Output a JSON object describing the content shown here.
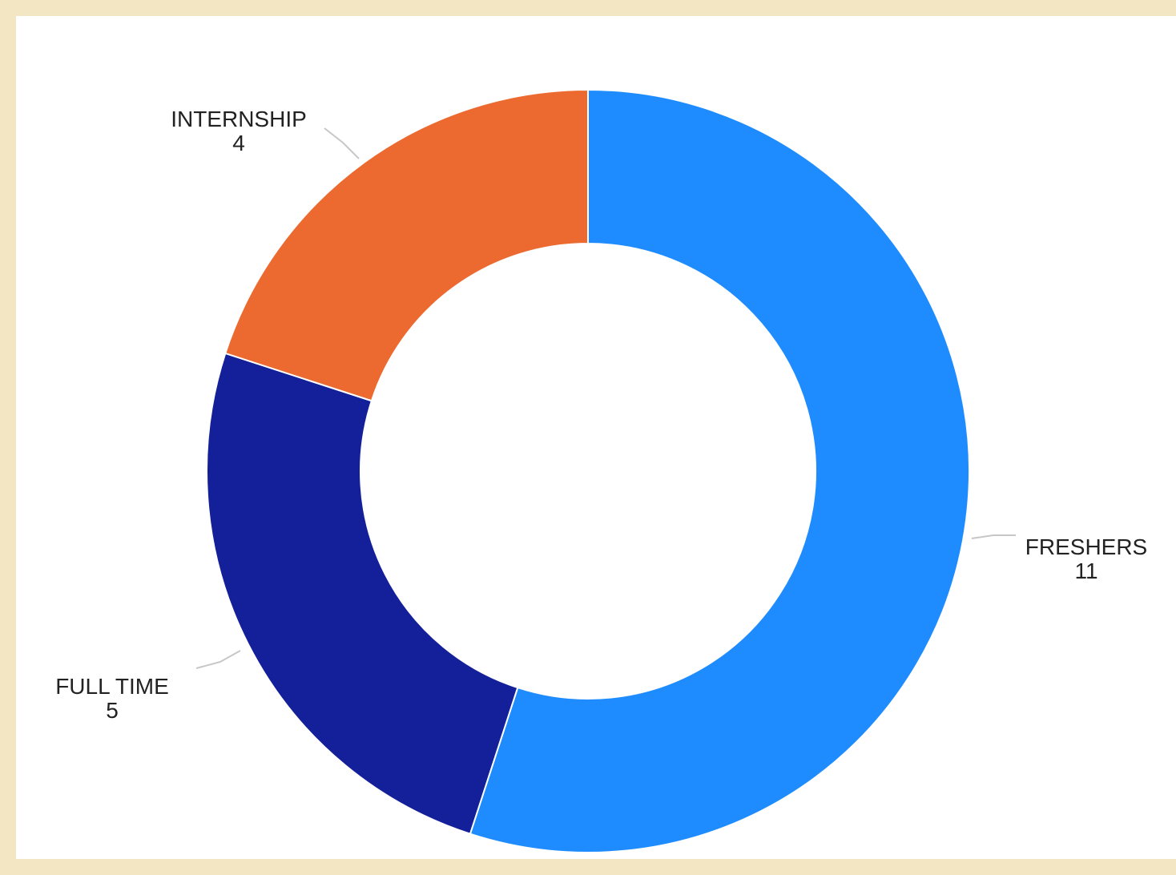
{
  "chart_data": {
    "type": "pie",
    "donut": true,
    "slices": [
      {
        "label": "FRESHERS",
        "value": 11,
        "color": "#1e8cff"
      },
      {
        "label": "FULL TIME",
        "value": 5,
        "color": "#14209a"
      },
      {
        "label": "INTERNSHIP",
        "value": 4,
        "color": "#ec6a2f"
      }
    ],
    "value_labels": [
      "11",
      "5",
      "4"
    ]
  }
}
